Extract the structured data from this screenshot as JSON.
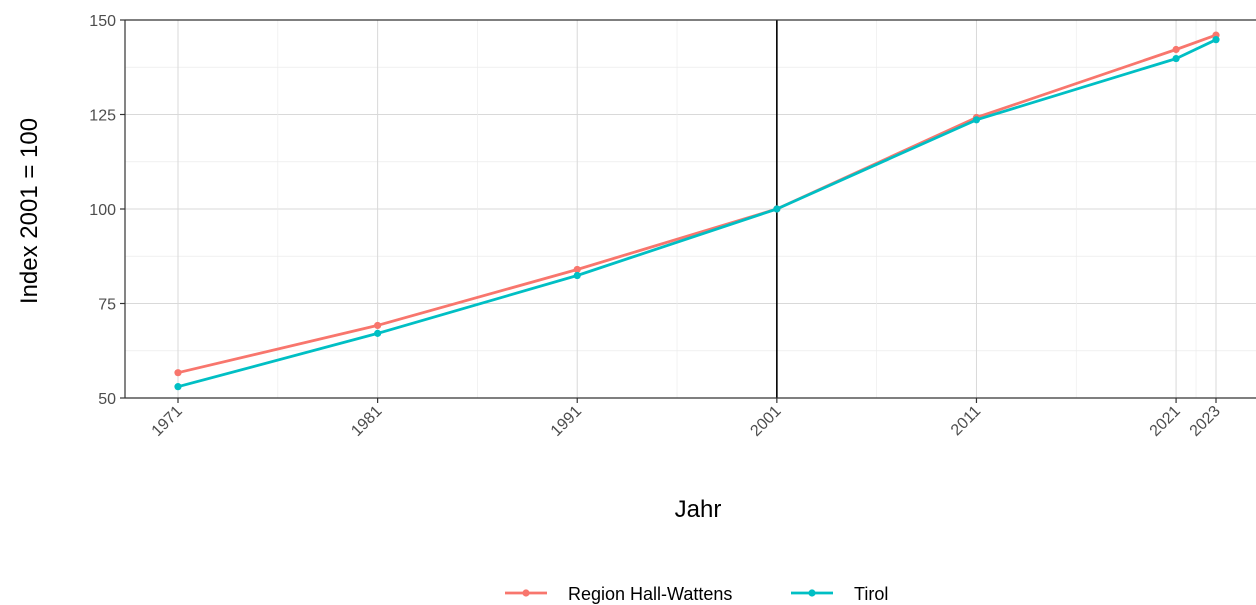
{
  "chart_data": {
    "type": "line",
    "xlabel": "Jahr",
    "ylabel": "Index 2001 = 100",
    "x": [
      1971,
      1981,
      1991,
      2001,
      2011,
      2021,
      2023
    ],
    "x_tick_labels": [
      "1971",
      "1981",
      "1991",
      "2001",
      "2011",
      "2021",
      "2023"
    ],
    "xlim": [
      1971,
      2023
    ],
    "ylim": [
      50,
      150
    ],
    "y_ticks": [
      50,
      75,
      100,
      125,
      150
    ],
    "y_tick_labels": [
      "50",
      "75",
      "100",
      "125",
      "150"
    ],
    "reference_line_x": 2001,
    "series": [
      {
        "name": "Region Hall-Wattens",
        "color": "#f8766d",
        "values": [
          56.7,
          69.2,
          84.0,
          100,
          124.2,
          142.2,
          146.0
        ]
      },
      {
        "name": "Tirol",
        "color": "#00bfc4",
        "values": [
          53.0,
          67.1,
          82.4,
          100,
          123.6,
          139.8,
          144.8
        ]
      }
    ],
    "grid": true,
    "legend_position": "bottom"
  }
}
